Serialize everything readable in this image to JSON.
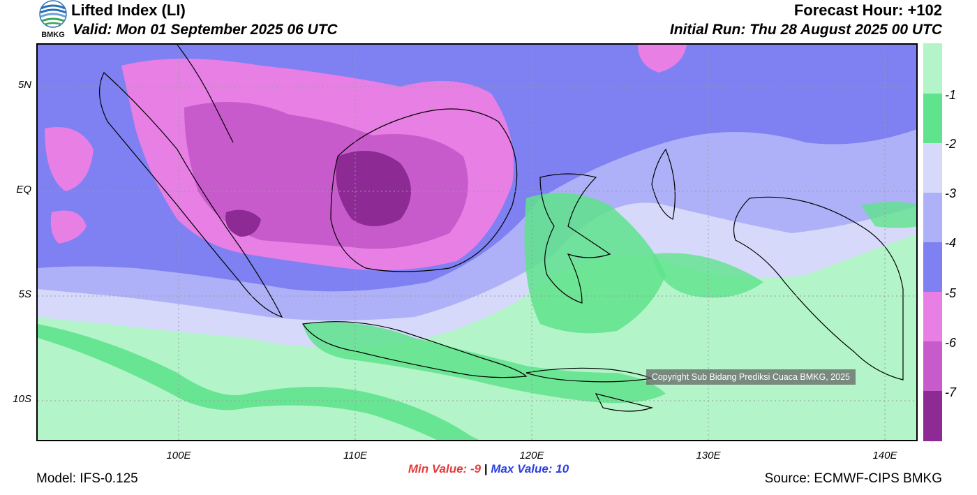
{
  "header": {
    "title": "Lifted Index (LI)",
    "valid": "Valid: Mon 01 September 2025 06 UTC",
    "forecast_hour": "Forecast Hour: +102",
    "initial_run": "Initial Run: Thu 28 August 2025 00 UTC"
  },
  "logo": {
    "text": "BMKG",
    "icon": "bmkg-logo-icon"
  },
  "map": {
    "lat_labels": [
      "5N",
      "EQ",
      "5S",
      "10S"
    ],
    "lon_labels": [
      "100E",
      "110E",
      "120E",
      "130E",
      "140E"
    ],
    "copyright": "Copyright Sub Bidang Prediksi Cuaca BMKG, 2025"
  },
  "colorbar": {
    "labels": [
      "-1",
      "-2",
      "-3",
      "-4",
      "-5",
      "-6",
      "-7"
    ],
    "colors": [
      "#b3f5c9",
      "#5fe38c",
      "#d7d9fa",
      "#aeb1f7",
      "#7f80f2",
      "#e77fe5",
      "#c75bcb",
      "#8e2a94"
    ]
  },
  "footer": {
    "min_label": "Min Value:",
    "min_value": "-9",
    "max_label": "Max Value:",
    "max_value": "10",
    "separator": "|",
    "model": "Model: IFS-0.125",
    "source": "Source: ECMWF-CIPS BMKG"
  }
}
